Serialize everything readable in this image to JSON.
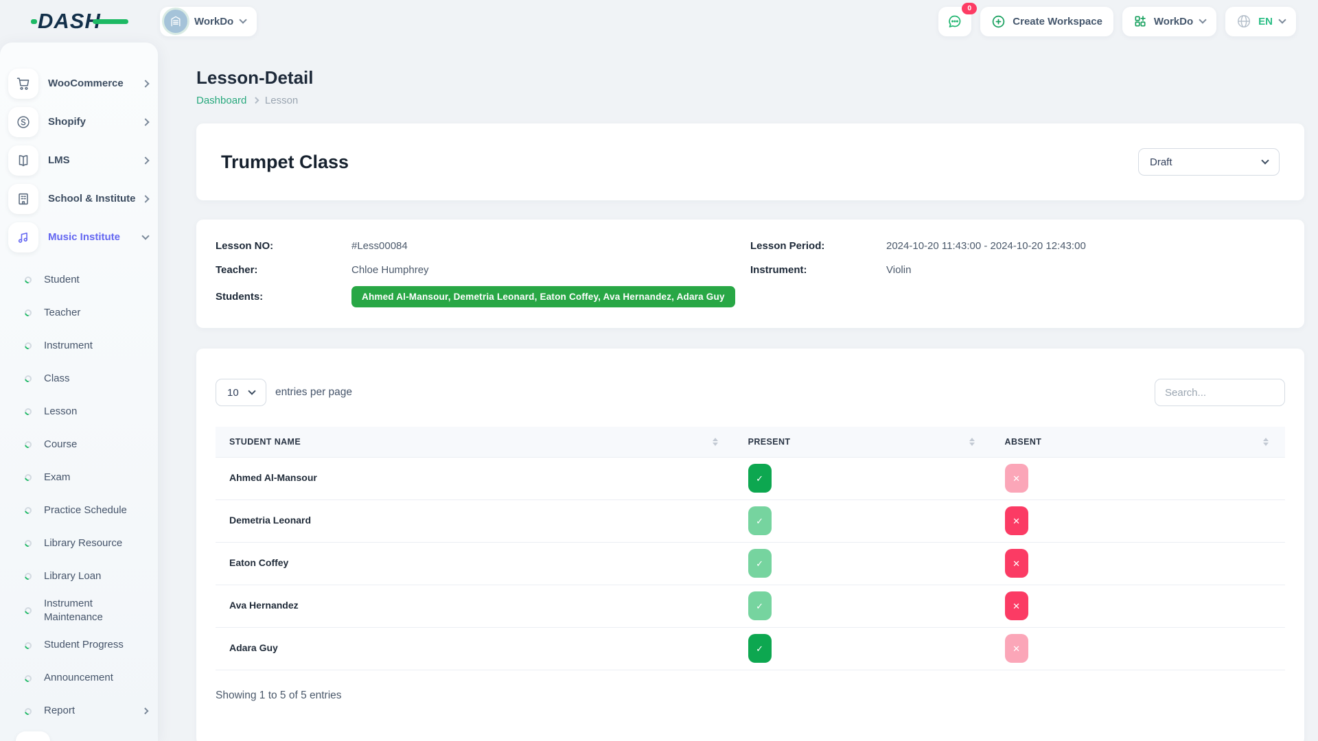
{
  "brand": {
    "logo_text": "DASH"
  },
  "header": {
    "workspace_label": "WorkDo",
    "messages_badge": "0",
    "create_workspace_label": "Create Workspace",
    "app_switcher_label": "WorkDo",
    "language": "EN"
  },
  "sidebar": {
    "items": [
      {
        "label": "WooCommerce",
        "icon": "cart-icon",
        "active": false,
        "expanded": false
      },
      {
        "label": "Shopify",
        "icon": "shopify-icon",
        "active": false,
        "expanded": false
      },
      {
        "label": "LMS",
        "icon": "book-icon",
        "active": false,
        "expanded": false
      },
      {
        "label": "School & Institute",
        "icon": "school-icon",
        "active": false,
        "expanded": false
      },
      {
        "label": "Music Institute",
        "icon": "music-icon",
        "active": true,
        "expanded": true
      }
    ],
    "music_items": [
      {
        "label": "Student",
        "chevron": false
      },
      {
        "label": "Teacher",
        "chevron": false
      },
      {
        "label": "Instrument",
        "chevron": false
      },
      {
        "label": "Class",
        "chevron": false
      },
      {
        "label": "Lesson",
        "chevron": false
      },
      {
        "label": "Course",
        "chevron": false
      },
      {
        "label": "Exam",
        "chevron": false
      },
      {
        "label": "Practice Schedule",
        "chevron": false
      },
      {
        "label": "Library Resource",
        "chevron": false
      },
      {
        "label": "Library Loan",
        "chevron": false
      },
      {
        "label": "Instrument Maintenance",
        "chevron": false
      },
      {
        "label": "Student Progress",
        "chevron": false
      },
      {
        "label": "Announcement",
        "chevron": false
      },
      {
        "label": "Report",
        "chevron": true
      }
    ]
  },
  "page": {
    "title": "Lesson-Detail",
    "breadcrumb": {
      "home": "Dashboard",
      "current": "Lesson"
    }
  },
  "lesson": {
    "name": "Trumpet Class",
    "status": "Draft",
    "lesson_no_label": "Lesson NO:",
    "lesson_no": "#Less00084",
    "teacher_label": "Teacher:",
    "teacher": "Chloe Humphrey",
    "students_label": "Students:",
    "students": "Ahmed Al-Mansour, Demetria Leonard, Eaton Coffey, Ava Hernandez, Adara Guy",
    "period_label": "Lesson Period:",
    "period": "2024-10-20 11:43:00 - 2024-10-20 12:43:00",
    "instrument_label": "Instrument:",
    "instrument": "Violin"
  },
  "attendance": {
    "entries_per_page": "10",
    "entries_label": "entries per page",
    "search_placeholder": "Search...",
    "columns": [
      "STUDENT NAME",
      "PRESENT",
      "ABSENT"
    ],
    "rows": [
      {
        "name": "Ahmed Al-Mansour",
        "present": true,
        "absent": false
      },
      {
        "name": "Demetria Leonard",
        "present": false,
        "absent": true
      },
      {
        "name": "Eaton Coffey",
        "present": false,
        "absent": true
      },
      {
        "name": "Ava Hernandez",
        "present": false,
        "absent": true
      },
      {
        "name": "Adara Guy",
        "present": true,
        "absent": false
      }
    ],
    "footer": "Showing 1 to 5 of 5 entries"
  },
  "colors": {
    "brand_navy": "#13304a",
    "brand_green": "#1db964",
    "accent_green": "#27a87c",
    "indigo_active": "#6366f1",
    "badge_green": "#28a745",
    "present_on": "#0da750",
    "present_off": "#76d49f",
    "absent_on": "#fb3b64",
    "absent_off": "#fba6b8",
    "notification_red": "#fd3c64",
    "lang_green": "#29bd84"
  }
}
